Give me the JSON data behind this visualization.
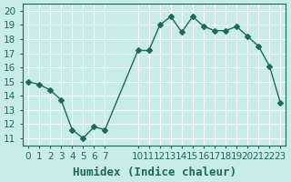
{
  "x": [
    0,
    1,
    2,
    3,
    4,
    5,
    6,
    7,
    10,
    11,
    12,
    13,
    14,
    15,
    16,
    17,
    18,
    19,
    20,
    21,
    22,
    23
  ],
  "y": [
    15.0,
    14.8,
    14.4,
    13.7,
    11.6,
    11.0,
    11.8,
    11.6,
    17.2,
    17.2,
    19.0,
    19.6,
    18.5,
    19.6,
    18.9,
    18.6,
    18.6,
    18.9,
    18.2,
    17.5,
    16.1,
    13.5
  ],
  "xlabel": "Humidex (Indice chaleur)",
  "xlim": [
    -0.5,
    23.5
  ],
  "ylim": [
    10.5,
    20.5
  ],
  "yticks": [
    11,
    12,
    13,
    14,
    15,
    16,
    17,
    18,
    19,
    20
  ],
  "xticks": [
    0,
    1,
    2,
    3,
    4,
    5,
    6,
    7,
    10,
    11,
    12,
    13,
    14,
    15,
    16,
    17,
    18,
    19,
    20,
    21,
    22,
    23
  ],
  "line_color": "#1a6b5a",
  "marker": "D",
  "marker_size": 3,
  "bg_color": "#c8ece8",
  "grid_color": "#ffffff",
  "axis_color": "#1a6b5a",
  "xlabel_fontsize": 9,
  "tick_fontsize": 7.5
}
